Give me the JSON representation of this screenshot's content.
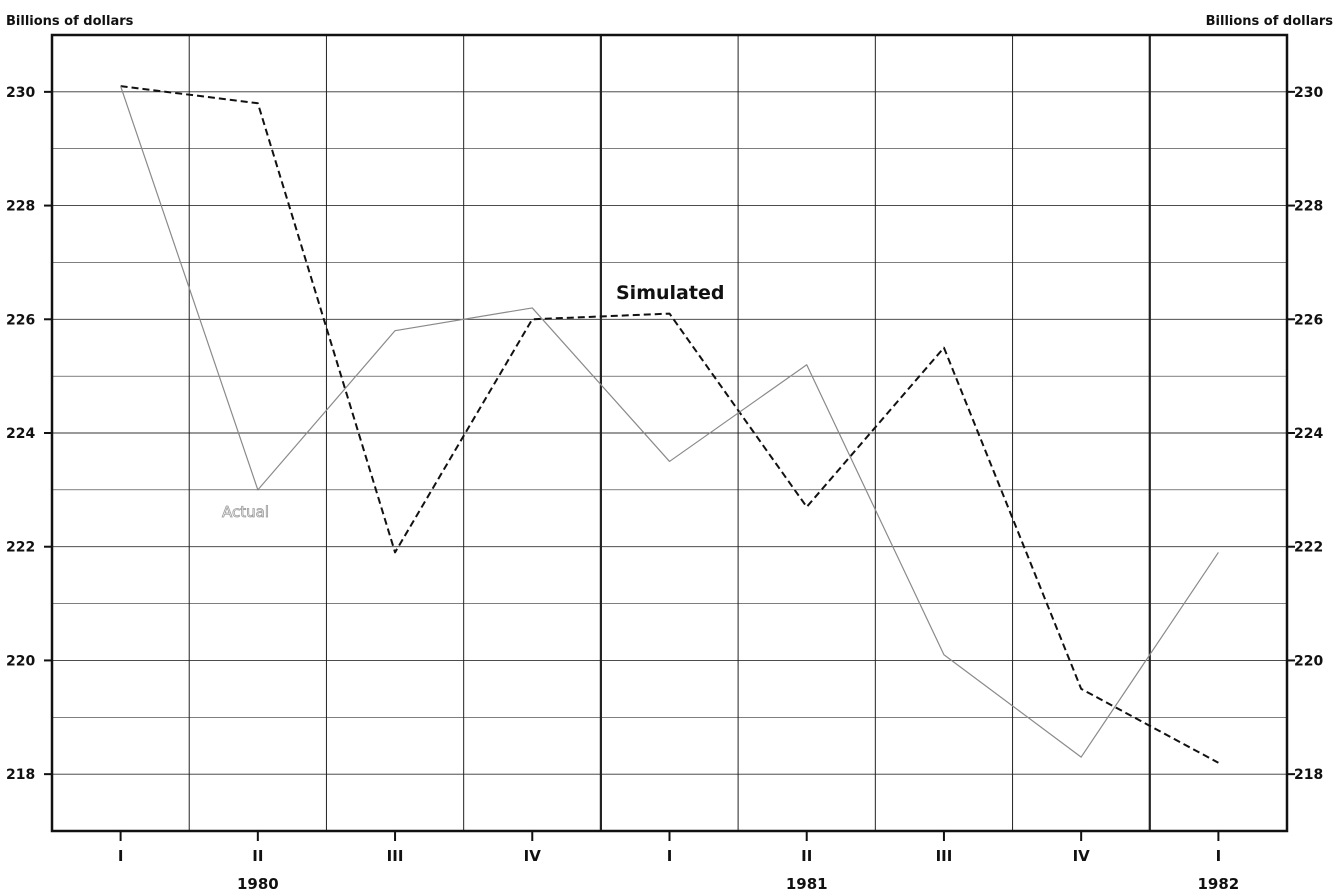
{
  "chart_data": {
    "type": "line",
    "ylabel_left": "Billions of dollars",
    "ylabel_right": "Billions of dollars",
    "categories": [
      "I",
      "II",
      "III",
      "IV",
      "I",
      "II",
      "III",
      "IV",
      "I"
    ],
    "years": [
      {
        "label": "1980",
        "index": 1
      },
      {
        "label": "1981",
        "index": 5
      },
      {
        "label": "1982",
        "index": 8
      }
    ],
    "ylim": [
      217,
      231
    ],
    "yticks": [
      218,
      220,
      222,
      224,
      226,
      228,
      230
    ],
    "grid": true,
    "series": [
      {
        "name": "Simulated",
        "style": "dashed",
        "color": "#111111",
        "values": [
          230.1,
          229.8,
          221.9,
          226.0,
          226.1,
          222.7,
          225.5,
          219.5,
          218.2
        ]
      },
      {
        "name": "Actual",
        "style": "solid",
        "color": "#8a8a8a",
        "values": [
          230.1,
          223.0,
          225.8,
          226.2,
          223.5,
          225.2,
          220.1,
          218.3,
          221.9
        ]
      }
    ]
  }
}
